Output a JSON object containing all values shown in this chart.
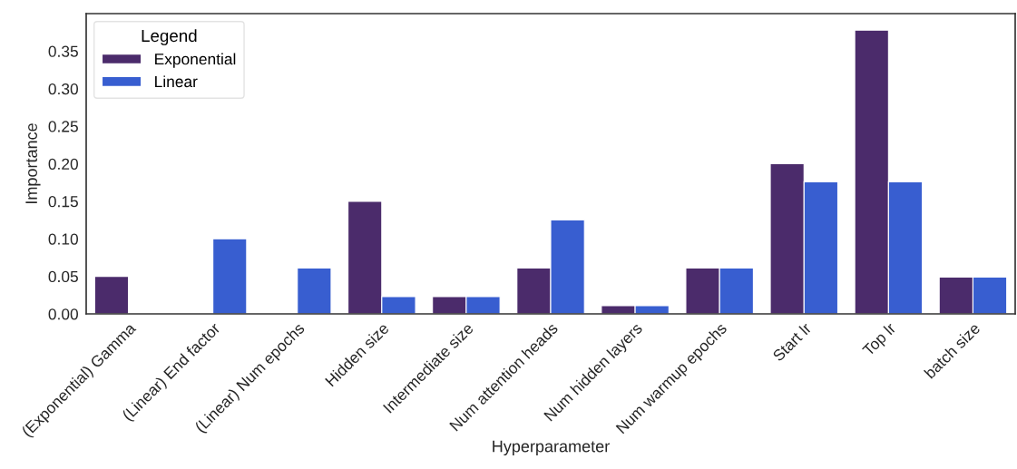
{
  "chart_data": {
    "type": "bar",
    "xlabel": "Hyperparameter",
    "ylabel": "Importance",
    "legend_title": "Legend",
    "categories": [
      "(Exponential) Gamma",
      "(Linear) End factor",
      "(Linear) Num epochs",
      "Hidden size",
      "Intermediate size",
      "Num attention heads",
      "Num hidden layers",
      "Num warmup epochs",
      "Start lr",
      "Top lr",
      "batch size"
    ],
    "series": [
      {
        "name": "Exponential",
        "color": "#4b2b6b",
        "values": [
          0.05,
          null,
          null,
          0.15,
          0.023,
          0.061,
          0.011,
          0.061,
          0.2,
          0.378,
          0.049
        ]
      },
      {
        "name": "Linear",
        "color": "#385ed0",
        "values": [
          null,
          0.1,
          0.061,
          0.023,
          0.023,
          0.125,
          0.011,
          0.061,
          0.176,
          0.176,
          0.049
        ]
      }
    ],
    "ylim": [
      0,
      0.4
    ],
    "yticks": [
      {
        "value": 0,
        "label": "0.00"
      },
      {
        "value": 0.05,
        "label": "0.05"
      },
      {
        "value": 0.1,
        "label": "0.10"
      },
      {
        "value": 0.15,
        "label": "0.15"
      },
      {
        "value": 0.2,
        "label": "0.20"
      },
      {
        "value": 0.25,
        "label": "0.25"
      },
      {
        "value": 0.3,
        "label": "0.30"
      },
      {
        "value": 0.35,
        "label": "0.35"
      }
    ],
    "legend": "top left",
    "grid": false
  }
}
